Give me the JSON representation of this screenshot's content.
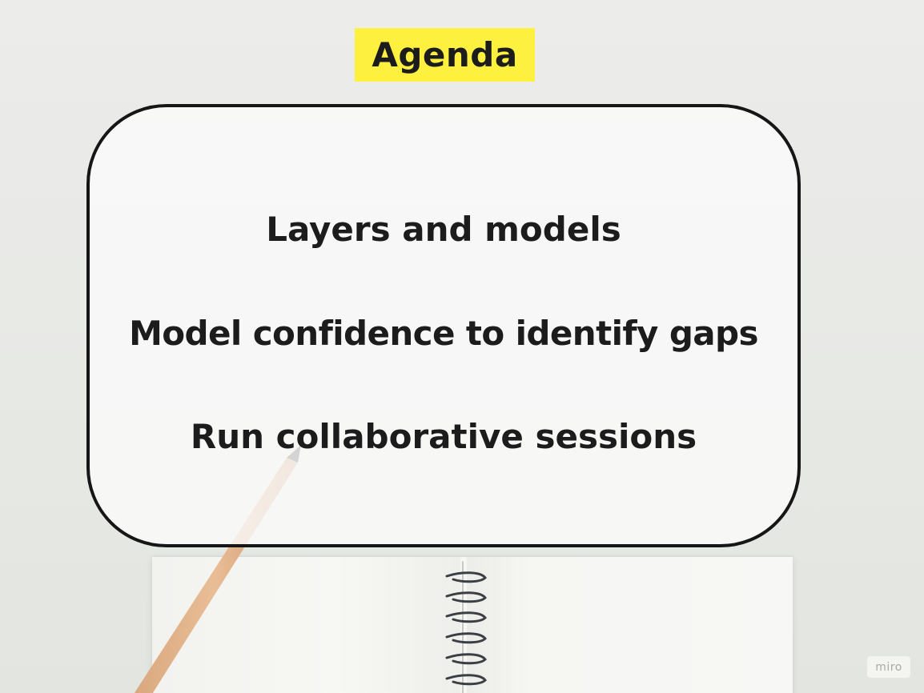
{
  "slide": {
    "title": "Agenda",
    "items": [
      "Layers and models",
      "Model confidence to identify gaps",
      "Run collaborative sessions"
    ]
  },
  "watermark": {
    "label": "miro"
  },
  "colors": {
    "title_highlight": "#fdf03f",
    "card_border": "#161616",
    "text": "#1c1c1c",
    "background": "#e8eae6"
  },
  "icons": {
    "background_props": [
      "pencil-icon",
      "notebook-icon",
      "spiral-binding-icon"
    ]
  }
}
